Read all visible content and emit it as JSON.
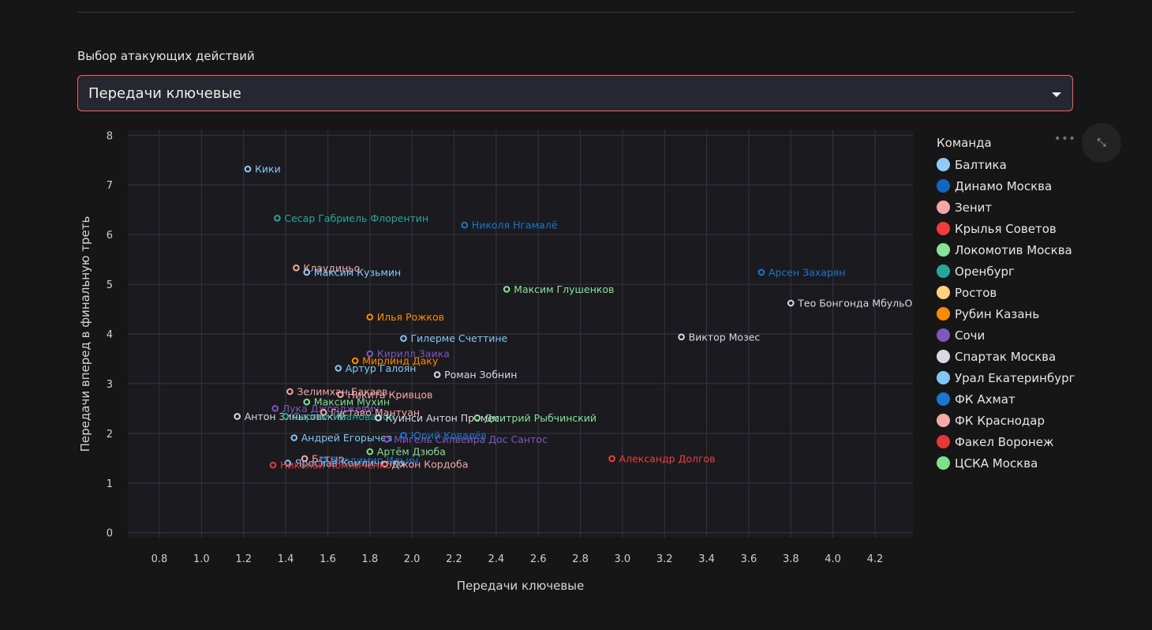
{
  "selector": {
    "label": "Выбор атакующих действий",
    "value": "Передачи ключевые"
  },
  "toolbar": {
    "more": "•••",
    "expand": "⤡"
  },
  "legend": {
    "title": "Команда",
    "teams": [
      {
        "name": "Балтика",
        "color": "#90caf9"
      },
      {
        "name": "Динамо Москва",
        "color": "#1565c0"
      },
      {
        "name": "Зенит",
        "color": "#f4a6a6"
      },
      {
        "name": "Крылья Советов",
        "color": "#f23b3b"
      },
      {
        "name": "Локомотив Москва",
        "color": "#86e39a"
      },
      {
        "name": "Оренбург",
        "color": "#26a69a"
      },
      {
        "name": "Ростов",
        "color": "#ffd27f"
      },
      {
        "name": "Рубин Казань",
        "color": "#fb8c00"
      },
      {
        "name": "Сочи",
        "color": "#7e57c2"
      },
      {
        "name": "Спартак Москва",
        "color": "#d9d9e3"
      },
      {
        "name": "Урал Екатеринбург",
        "color": "#81c7f5"
      },
      {
        "name": "ФК Ахмат",
        "color": "#1976d2"
      },
      {
        "name": "ФК Краснодар",
        "color": "#f7a8a8"
      },
      {
        "name": "Факел Воронеж",
        "color": "#e53935"
      },
      {
        "name": "ЦСКА Москва",
        "color": "#7ee08f"
      }
    ]
  },
  "chart_data": {
    "type": "scatter",
    "xlabel": "Передачи ключевые",
    "ylabel": "Передачи вперед в финальную треть",
    "xlim": [
      0.65,
      4.38
    ],
    "ylim": [
      -0.1,
      8.1
    ],
    "xticks": [
      "0.8",
      "1.0",
      "1.2",
      "1.4",
      "1.6",
      "1.8",
      "2.0",
      "2.2",
      "2.4",
      "2.6",
      "2.8",
      "3.0",
      "3.2",
      "3.4",
      "3.6",
      "3.8",
      "4.0",
      "4.2"
    ],
    "yticks": [
      "0",
      "1",
      "2",
      "3",
      "4",
      "5",
      "6",
      "7",
      "8"
    ],
    "grid": true,
    "legend_position": "right",
    "points": [
      {
        "x": 1.22,
        "y": 7.32,
        "label": "Кики",
        "team": "Балтика"
      },
      {
        "x": 1.36,
        "y": 6.33,
        "label": "Сесар Габриель Флорентин",
        "team": "Оренбург"
      },
      {
        "x": 2.25,
        "y": 6.19,
        "label": "Николя Нгамалё",
        "team": "ФК Ахмат"
      },
      {
        "x": 1.45,
        "y": 5.33,
        "label": "Клаудиньо",
        "team": "Зенит"
      },
      {
        "x": 1.5,
        "y": 5.24,
        "label": "Максим Кузьмин",
        "team": "Балтика"
      },
      {
        "x": 3.66,
        "y": 5.24,
        "label": "Арсен Захарян",
        "team": "ФК Ахмат"
      },
      {
        "x": 2.45,
        "y": 4.9,
        "label": "Максим Глушенков",
        "team": "Локомотив Москва"
      },
      {
        "x": 3.8,
        "y": 4.62,
        "label": "Тео Бонгонда МбульО",
        "team": "Спартак Москва"
      },
      {
        "x": 1.8,
        "y": 4.34,
        "label": "Илья Рожков",
        "team": "Рубин Казань"
      },
      {
        "x": 3.28,
        "y": 3.94,
        "label": "Виктор Мозес",
        "team": "Спартак Москва"
      },
      {
        "x": 1.96,
        "y": 3.91,
        "label": "Гилерме Счеттине",
        "team": "Урал Екатеринбург"
      },
      {
        "x": 1.8,
        "y": 3.6,
        "label": "Кирилл Заика",
        "team": "Сочи"
      },
      {
        "x": 1.73,
        "y": 3.46,
        "label": "Мирлинд Даку",
        "team": "Рубин Казань"
      },
      {
        "x": 1.65,
        "y": 3.31,
        "label": "Артур Галоян",
        "team": "Урал Екатеринбург"
      },
      {
        "x": 2.12,
        "y": 3.18,
        "label": "Роман Зобнин",
        "team": "Спартак Москва"
      },
      {
        "x": 1.42,
        "y": 2.84,
        "label": "Зелимхан Бакаев",
        "team": "Зенит"
      },
      {
        "x": 1.66,
        "y": 2.78,
        "label": "Никита Кривцов",
        "team": "ФК Краснодар"
      },
      {
        "x": 1.5,
        "y": 2.63,
        "label": "Максим Мухин",
        "team": "ЦСКА Москва"
      },
      {
        "x": 1.35,
        "y": 2.5,
        "label": "Лука Джорджевич",
        "team": "Сочи"
      },
      {
        "x": 1.58,
        "y": 2.42,
        "label": "Густаво Мантуан",
        "team": "ФК Краснодар"
      },
      {
        "x": 1.17,
        "y": 2.34,
        "label": "Антон Зиньковский",
        "team": "Спартак Москва"
      },
      {
        "x": 1.4,
        "y": 2.34,
        "label": "Сергей Ивановалов",
        "team": "Оренбург"
      },
      {
        "x": 1.84,
        "y": 2.31,
        "label": "Куинси Антон Промес",
        "team": "Спартак Москва"
      },
      {
        "x": 2.31,
        "y": 2.31,
        "label": "Дмитрий Рыбчинский",
        "team": "Локомотив Москва"
      },
      {
        "x": 1.96,
        "y": 1.96,
        "label": "Юрий Ковалёв",
        "team": "ФК Ахмат"
      },
      {
        "x": 1.44,
        "y": 1.91,
        "label": "Андрей Егорычев",
        "team": "Урал Екатеринбург"
      },
      {
        "x": 1.88,
        "y": 1.88,
        "label": "Мигель Силвейра Дос Сантос",
        "team": "Сочи"
      },
      {
        "x": 1.8,
        "y": 1.63,
        "label": "Артём Дзюба",
        "team": "ЦСКА Москва"
      },
      {
        "x": 2.95,
        "y": 1.49,
        "label": "Александр Долгов",
        "team": "Крылья Советов"
      },
      {
        "x": 1.49,
        "y": 1.49,
        "label": "Батыр",
        "team": "Зенит"
      },
      {
        "x": 1.58,
        "y": 1.46,
        "label": "Владимир Ильин",
        "team": "ФК Ахмат"
      },
      {
        "x": 1.41,
        "y": 1.4,
        "label": "Ярослав Комличенко",
        "team": "Урал Екатеринбург"
      },
      {
        "x": 1.87,
        "y": 1.38,
        "label": "Джон Кордоба",
        "team": "ФК Краснодар"
      },
      {
        "x": 1.34,
        "y": 1.36,
        "label": "Николай Комличенко",
        "team": "Факел Воронеж"
      }
    ]
  }
}
